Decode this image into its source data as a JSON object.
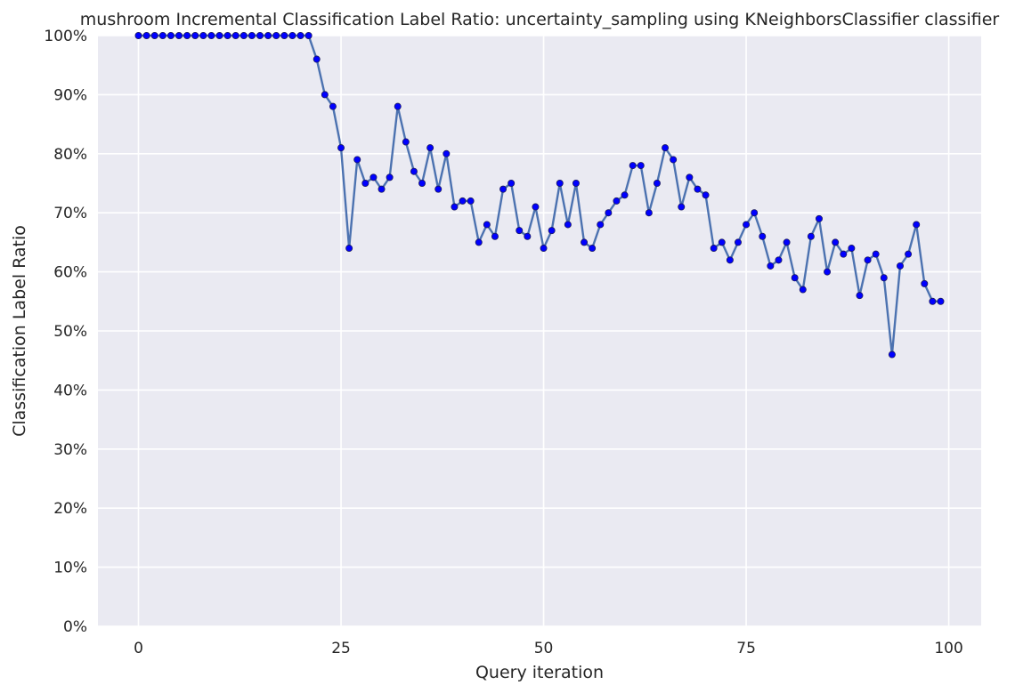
{
  "chart_data": {
    "type": "line",
    "title": "mushroom Incremental Classification Label Ratio: uncertainty_sampling using KNeighborsClassifier classifier",
    "xlabel": "Query iteration",
    "ylabel": "Classification Label Ratio",
    "xlim": [
      -5,
      104
    ],
    "ylim": [
      0,
      1
    ],
    "x_ticks": [
      0,
      25,
      50,
      75,
      100
    ],
    "y_ticks": [
      0,
      0.1,
      0.2,
      0.3,
      0.4,
      0.5,
      0.6,
      0.7,
      0.8,
      0.9,
      1.0
    ],
    "x_tick_labels": [
      "0",
      "25",
      "50",
      "75",
      "100"
    ],
    "y_tick_labels": [
      "0%",
      "10%",
      "20%",
      "30%",
      "40%",
      "50%",
      "60%",
      "70%",
      "80%",
      "90%",
      "100%"
    ],
    "grid": true,
    "colors": {
      "background": "#eaeaf2",
      "grid": "#ffffff",
      "line": "#4c72b0",
      "marker": "#0000ff"
    },
    "series": [
      {
        "x": [
          0,
          1,
          2,
          3,
          4,
          5,
          6,
          7,
          8,
          9,
          10,
          11,
          12,
          13,
          14,
          15,
          16,
          17,
          18,
          19,
          20,
          21,
          22,
          23,
          24,
          25,
          26,
          27,
          28,
          29,
          30,
          31,
          32,
          33,
          34,
          35,
          36,
          37,
          38,
          39,
          40,
          41,
          42,
          43,
          44,
          45,
          46,
          47,
          48,
          49,
          50,
          51,
          52,
          53,
          54,
          55,
          56,
          57,
          58,
          59,
          60,
          61,
          62,
          63,
          64,
          65,
          66,
          67,
          68,
          69,
          70,
          71,
          72,
          73,
          74,
          75,
          76,
          77,
          78,
          79,
          80,
          81,
          82,
          83,
          84,
          85,
          86,
          87,
          88,
          89,
          90,
          91,
          92,
          93,
          94,
          95,
          96,
          97,
          98,
          99
        ],
        "values": [
          1.0,
          1.0,
          1.0,
          1.0,
          1.0,
          1.0,
          1.0,
          1.0,
          1.0,
          1.0,
          1.0,
          1.0,
          1.0,
          1.0,
          1.0,
          1.0,
          1.0,
          1.0,
          1.0,
          1.0,
          1.0,
          1.0,
          0.96,
          0.9,
          0.88,
          0.81,
          0.64,
          0.79,
          0.75,
          0.76,
          0.74,
          0.76,
          0.88,
          0.82,
          0.77,
          0.75,
          0.81,
          0.74,
          0.8,
          0.71,
          0.72,
          0.72,
          0.65,
          0.68,
          0.66,
          0.74,
          0.75,
          0.67,
          0.66,
          0.71,
          0.64,
          0.67,
          0.75,
          0.68,
          0.75,
          0.65,
          0.64,
          0.68,
          0.7,
          0.72,
          0.73,
          0.78,
          0.78,
          0.7,
          0.75,
          0.81,
          0.79,
          0.71,
          0.76,
          0.74,
          0.73,
          0.64,
          0.65,
          0.62,
          0.65,
          0.68,
          0.7,
          0.66,
          0.61,
          0.62,
          0.65,
          0.59,
          0.57,
          0.66,
          0.69,
          0.6,
          0.65,
          0.63,
          0.64,
          0.56,
          0.62,
          0.63,
          0.59,
          0.46,
          0.61,
          0.63,
          0.68,
          0.58,
          0.55,
          0.55
        ]
      }
    ]
  }
}
